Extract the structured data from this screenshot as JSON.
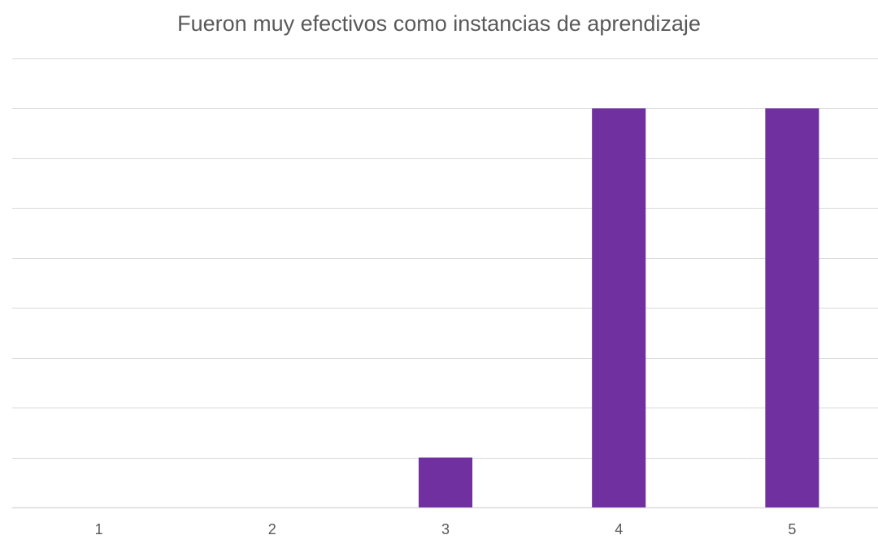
{
  "chart_data": {
    "type": "bar",
    "title": "Fueron muy efectivos como instancias de aprendizaje",
    "categories": [
      "1",
      "2",
      "3",
      "4",
      "5"
    ],
    "series": [
      {
        "values": [
          0,
          0,
          1,
          8,
          8
        ]
      }
    ],
    "ylim": [
      0,
      9
    ],
    "grid": true,
    "xlabel": "",
    "ylabel": "",
    "bar_color": "#7030A0",
    "grid_color": "#D9D9D9"
  }
}
